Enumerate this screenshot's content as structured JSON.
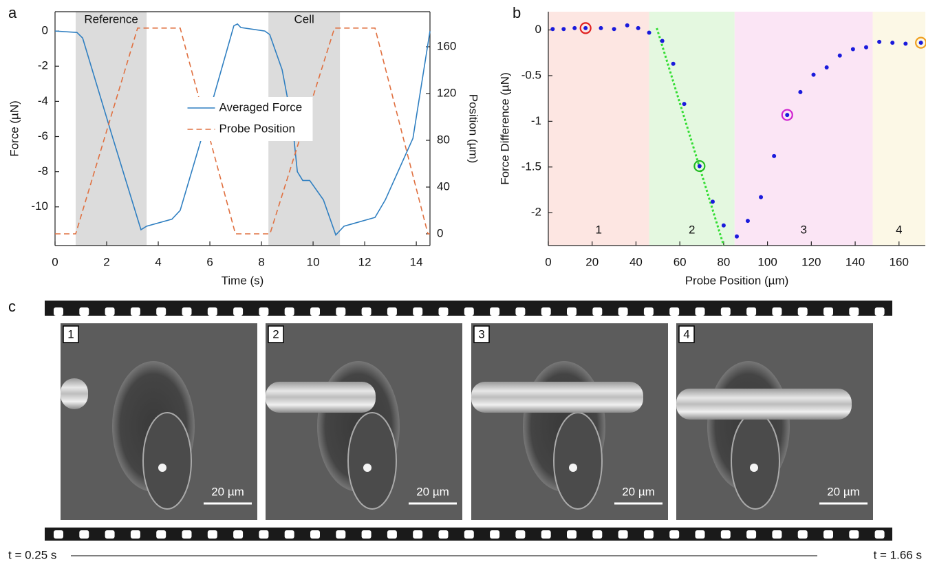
{
  "figure": {
    "panel_labels": [
      "a",
      "b",
      "c"
    ],
    "frames": [
      {
        "label": "1",
        "scale_bar": "20 µm"
      },
      {
        "label": "2",
        "scale_bar": "20 µm"
      },
      {
        "label": "3",
        "scale_bar": "20 µm"
      },
      {
        "label": "4",
        "scale_bar": "20 µm"
      }
    ],
    "time_start": "t = 0.25 s",
    "time_end": "t = 1.66 s"
  },
  "chart_data": [
    {
      "type": "line",
      "xlabel": "Time (s)",
      "ylabel": "Force (µN)",
      "y2label": "Position (µm)",
      "xlim": [
        0,
        14.53
      ],
      "xticks": [
        0,
        2,
        4,
        6,
        8,
        10,
        12,
        14
      ],
      "ylim": [
        -12.2,
        1.1
      ],
      "yticks": [
        -10,
        -8,
        -6,
        -4,
        -2,
        0
      ],
      "y2lim": [
        -10,
        190
      ],
      "y2ticks": [
        0,
        40,
        80,
        120,
        160
      ],
      "shaded_regions": [
        {
          "label": "Reference",
          "range": [
            0.8,
            3.55
          ],
          "color": "#dcdcdc"
        },
        {
          "label": "Cell",
          "range": [
            8.27,
            11.04
          ],
          "color": "#dcdcdc"
        }
      ],
      "legend": "center",
      "series": [
        {
          "name": "Averaged Force",
          "color": "#2f7fc1",
          "style": "solid",
          "x": [
            0,
            0.85,
            1.07,
            2.2,
            3.33,
            3.55,
            4.53,
            4.85,
            6.0,
            6.93,
            7.07,
            7.2,
            8.13,
            8.32,
            8.8,
            9.2,
            9.39,
            9.6,
            9.87,
            10.4,
            10.88,
            11.2,
            12.4,
            12.8,
            13.87,
            14.53
          ],
          "values": [
            0,
            -0.08,
            -0.4,
            -5.9,
            -11.3,
            -11.1,
            -10.7,
            -10.2,
            -4.5,
            0.3,
            0.4,
            0.2,
            0,
            -0.2,
            -2.2,
            -5.3,
            -8.0,
            -8.5,
            -8.5,
            -9.6,
            -11.6,
            -11.1,
            -10.6,
            -9.6,
            -6.1,
            0
          ]
        },
        {
          "name": "Probe Position",
          "color": "#e07040",
          "style": "dashed",
          "axis": "y2",
          "x": [
            0,
            0.8,
            3.2,
            4.85,
            6.99,
            8.33,
            10.83,
            12.4,
            14.45,
            14.53
          ],
          "values": [
            0,
            0,
            176,
            176,
            0,
            0,
            176,
            176,
            0,
            0
          ]
        }
      ]
    },
    {
      "type": "scatter",
      "xlabel": "Probe Position (µm)",
      "ylabel": "Force Difference (µN)",
      "xlim": [
        0,
        172
      ],
      "xticks": [
        0,
        20,
        40,
        60,
        80,
        100,
        120,
        140,
        160
      ],
      "ylim": [
        -2.36,
        0.2
      ],
      "yticks": [
        -2,
        -1.5,
        -1,
        -0.5,
        0
      ],
      "regions": [
        {
          "label": "1",
          "range": [
            0,
            46
          ],
          "color": "#fde6e2"
        },
        {
          "label": "2",
          "range": [
            46,
            85
          ],
          "color": "#e4f8e0"
        },
        {
          "label": "3",
          "range": [
            85,
            148
          ],
          "color": "#fbe5f5"
        },
        {
          "label": "4",
          "range": [
            148,
            172
          ],
          "color": "#fcf8e6"
        }
      ],
      "color": "#1a1adc",
      "x": [
        2,
        7,
        12,
        17,
        24,
        30,
        36,
        41,
        46,
        52,
        57,
        62,
        69,
        75,
        80,
        86,
        91,
        97,
        103,
        109,
        115,
        121,
        127,
        133,
        139,
        145,
        151,
        157,
        163,
        170
      ],
      "values": [
        0.01,
        0.01,
        0.02,
        0.02,
        0.02,
        0.01,
        0.05,
        0.02,
        -0.03,
        -0.12,
        -0.37,
        -0.81,
        -1.49,
        -1.88,
        -2.14,
        -2.26,
        -2.09,
        -1.83,
        -1.38,
        -0.93,
        -0.68,
        -0.49,
        -0.41,
        -0.28,
        -0.21,
        -0.19,
        -0.13,
        -0.14,
        -0.15,
        -0.14
      ],
      "ring_colors": [
        null,
        null,
        null,
        "#e02020",
        null,
        null,
        null,
        null,
        null,
        null,
        null,
        null,
        "#22bb22",
        null,
        null,
        null,
        null,
        null,
        null,
        "#d020d0",
        null,
        null,
        null,
        null,
        null,
        null,
        null,
        null,
        null,
        "#f0a020"
      ],
      "fit_line": {
        "x": [
          49.5,
          80
        ],
        "values": [
          0.02,
          -2.36
        ],
        "color": "#33dd33"
      }
    }
  ]
}
